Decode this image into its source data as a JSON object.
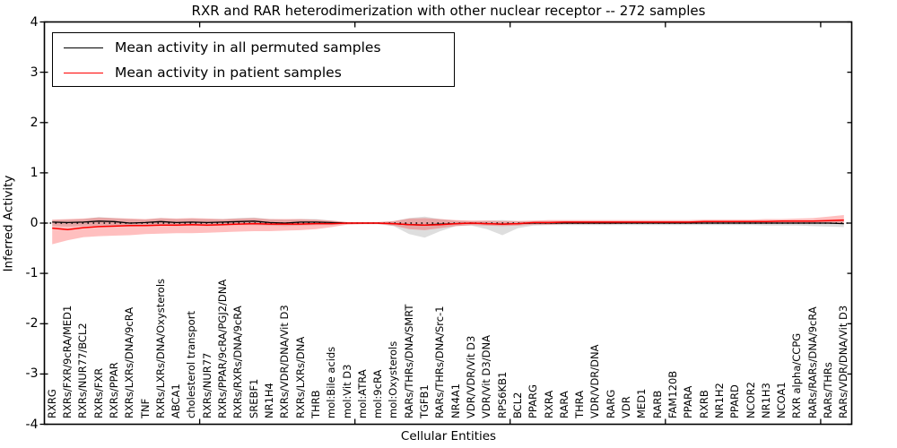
{
  "figure": {
    "title": "RXR and RAR heterodimerization with other nuclear receptor -- 272 samples",
    "xlabel": "Cellular Entities",
    "ylabel": "Inferred Activity",
    "background_color": "#ffffff",
    "axis_color": "#000000"
  },
  "legend": {
    "entries": [
      {
        "label": "Mean activity in all permuted samples",
        "color": "#000000"
      },
      {
        "label": "Mean activity in patient samples",
        "color": "#ff0000"
      }
    ],
    "position": "upper left"
  },
  "chart_data": {
    "type": "line",
    "title": "RXR and RAR heterodimerization with other nuclear receptor -- 272 samples",
    "xlabel": "Cellular Entities",
    "ylabel": "Inferred Activity",
    "ylim": [
      -4,
      4
    ],
    "y_ticks": [
      4,
      3,
      2,
      1,
      0,
      -1,
      -2,
      -3,
      -4
    ],
    "x_major_tick_indices": [
      9,
      19,
      29,
      39,
      49
    ],
    "grid": false,
    "legend_position": "upper left",
    "zero_line": {
      "y": 0,
      "style": "dotted",
      "color": "#000000"
    },
    "categories": [
      "RXRG",
      "RXRs/FXR/9cRA/MED1",
      "RXRs/NUR77/BCL2",
      "RXRs/FXR",
      "RXRs/PPAR",
      "RXRs/LXRs/DNA/9cRA",
      "TNF",
      "RXRs/LXRs/DNA/Oxysterols",
      "ABCA1",
      "cholesterol transport",
      "RXRs/NUR77",
      "RXRs/PPAR/9cRA/PGJ2/DNA",
      "RXRs/RXRs/DNA/9cRA",
      "SREBF1",
      "NR1H4",
      "RXRs/VDR/DNA/Vit D3",
      "RXRs/LXRs/DNA",
      "THRB",
      "mol:Bile acids",
      "mol:Vit D3",
      "mol:ATRA",
      "mol:9cRA",
      "mol:Oxysterols",
      "RARs/THRs/DNA/SMRT",
      "TGFB1",
      "RARs/THRs/DNA/Src-1",
      "NR4A1",
      "VDR/VDR/Vit D3",
      "VDR/Vit D3/DNA",
      "RPS6KB1",
      "BCL2",
      "PPARG",
      "RXRA",
      "RARA",
      "THRA",
      "VDR/VDR/DNA",
      "RARG",
      "VDR",
      "MED1",
      "RARB",
      "FAM120B",
      "PPARA",
      "RXRB",
      "NR1H2",
      "PPARD",
      "NCOR2",
      "NR1H3",
      "NCOA1",
      "RXR alpha/CCPG",
      "RARs/RARs/DNA/9cRA",
      "RARs/THRs",
      "RARs/VDR/DNA/Vit D3"
    ],
    "series": [
      {
        "name": "Mean activity in all permuted samples",
        "color": "#000000",
        "line_width": 1.3,
        "band_color": "rgba(0,0,0,0.13)",
        "values": [
          0.02,
          0.01,
          0.02,
          0.04,
          0.03,
          0.0,
          0.01,
          0.03,
          0.01,
          0.02,
          0.01,
          0.02,
          0.03,
          0.04,
          0.01,
          0.0,
          0.02,
          0.02,
          0.01,
          0.0,
          0.0,
          0.0,
          -0.01,
          -0.03,
          -0.04,
          -0.02,
          -0.01,
          0.0,
          -0.01,
          -0.02,
          -0.01,
          0.0,
          0.0,
          0.0,
          0.0,
          0.0,
          0.0,
          0.0,
          0.0,
          0.0,
          0.0,
          0.0,
          0.0,
          0.0,
          0.0,
          0.0,
          0.0,
          0.0,
          0.0,
          0.0,
          0.0,
          -0.01
        ],
        "band_lo": [
          -0.06,
          -0.07,
          -0.06,
          -0.05,
          -0.06,
          -0.07,
          -0.06,
          -0.05,
          -0.06,
          -0.05,
          -0.06,
          -0.05,
          -0.04,
          -0.04,
          -0.05,
          -0.06,
          -0.05,
          -0.04,
          -0.04,
          -0.02,
          -0.02,
          -0.02,
          -0.06,
          -0.22,
          -0.29,
          -0.16,
          -0.06,
          -0.05,
          -0.12,
          -0.24,
          -0.1,
          -0.05,
          -0.04,
          -0.04,
          -0.04,
          -0.04,
          -0.04,
          -0.04,
          -0.04,
          -0.04,
          -0.04,
          -0.04,
          -0.04,
          -0.04,
          -0.04,
          -0.04,
          -0.05,
          -0.05,
          -0.05,
          -0.06,
          -0.07,
          -0.08
        ],
        "band_hi": [
          0.06,
          0.07,
          0.08,
          0.12,
          0.1,
          0.08,
          0.07,
          0.1,
          0.08,
          0.09,
          0.08,
          0.08,
          0.1,
          0.11,
          0.08,
          0.07,
          0.08,
          0.08,
          0.05,
          0.02,
          0.02,
          0.02,
          0.04,
          0.1,
          0.13,
          0.08,
          0.05,
          0.04,
          0.05,
          0.06,
          0.04,
          0.04,
          0.04,
          0.04,
          0.04,
          0.04,
          0.04,
          0.04,
          0.04,
          0.04,
          0.04,
          0.04,
          0.04,
          0.04,
          0.04,
          0.04,
          0.04,
          0.04,
          0.05,
          0.05,
          0.06,
          0.07
        ]
      },
      {
        "name": "Mean activity in patient samples",
        "color": "#ff0000",
        "line_width": 1.5,
        "band_color": "rgba(255,0,0,0.25)",
        "values": [
          -0.1,
          -0.13,
          -0.09,
          -0.07,
          -0.06,
          -0.05,
          -0.05,
          -0.04,
          -0.04,
          -0.03,
          -0.04,
          -0.03,
          -0.02,
          -0.01,
          -0.02,
          -0.02,
          -0.02,
          -0.01,
          -0.01,
          0.0,
          0.0,
          0.0,
          -0.01,
          -0.03,
          -0.04,
          -0.03,
          -0.01,
          0.0,
          -0.01,
          -0.02,
          -0.01,
          0.01,
          0.01,
          0.02,
          0.02,
          0.02,
          0.02,
          0.02,
          0.02,
          0.02,
          0.02,
          0.02,
          0.03,
          0.03,
          0.03,
          0.03,
          0.03,
          0.04,
          0.04,
          0.04,
          0.05,
          0.06
        ],
        "band_lo": [
          -0.42,
          -0.34,
          -0.28,
          -0.26,
          -0.25,
          -0.24,
          -0.22,
          -0.21,
          -0.2,
          -0.2,
          -0.19,
          -0.18,
          -0.17,
          -0.16,
          -0.16,
          -0.15,
          -0.14,
          -0.12,
          -0.08,
          -0.03,
          -0.02,
          -0.02,
          -0.05,
          -0.12,
          -0.14,
          -0.1,
          -0.06,
          -0.04,
          -0.05,
          -0.06,
          -0.05,
          -0.03,
          -0.03,
          -0.02,
          -0.02,
          -0.02,
          -0.02,
          -0.01,
          -0.01,
          -0.01,
          -0.01,
          -0.01,
          0.0,
          0.0,
          0.0,
          0.0,
          0.0,
          0.0,
          0.0,
          0.0,
          -0.01,
          -0.02
        ],
        "band_hi": [
          0.07,
          0.08,
          0.09,
          0.11,
          0.1,
          0.09,
          0.08,
          0.1,
          0.09,
          0.1,
          0.09,
          0.08,
          0.09,
          0.1,
          0.08,
          0.08,
          0.08,
          0.07,
          0.05,
          0.02,
          0.02,
          0.02,
          0.04,
          0.09,
          0.1,
          0.08,
          0.06,
          0.05,
          0.05,
          0.04,
          0.04,
          0.05,
          0.06,
          0.06,
          0.06,
          0.06,
          0.06,
          0.06,
          0.06,
          0.06,
          0.06,
          0.06,
          0.07,
          0.07,
          0.07,
          0.07,
          0.08,
          0.08,
          0.09,
          0.1,
          0.13,
          0.16
        ]
      }
    ]
  }
}
